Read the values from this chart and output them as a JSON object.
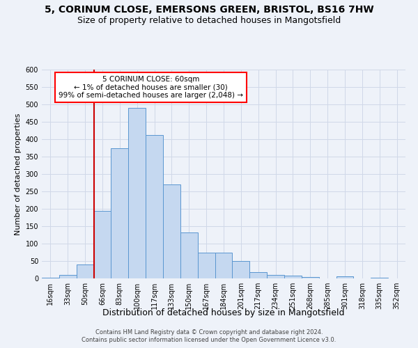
{
  "title_line1": "5, CORINUM CLOSE, EMERSONS GREEN, BRISTOL, BS16 7HW",
  "title_line2": "Size of property relative to detached houses in Mangotsfield",
  "xlabel": "Distribution of detached houses by size in Mangotsfield",
  "ylabel": "Number of detached properties",
  "categories": [
    "16sqm",
    "33sqm",
    "50sqm",
    "66sqm",
    "83sqm",
    "100sqm",
    "117sqm",
    "133sqm",
    "150sqm",
    "167sqm",
    "184sqm",
    "201sqm",
    "217sqm",
    "234sqm",
    "251sqm",
    "268sqm",
    "285sqm",
    "301sqm",
    "318sqm",
    "335sqm",
    "352sqm"
  ],
  "values": [
    3,
    10,
    40,
    195,
    375,
    490,
    412,
    270,
    132,
    74,
    74,
    50,
    18,
    10,
    8,
    5,
    0,
    6,
    0,
    2,
    1
  ],
  "bar_color": "#c5d8f0",
  "bar_edge_color": "#5a96d0",
  "annotation_text": "5 CORINUM CLOSE: 60sqm\n← 1% of detached houses are smaller (30)\n99% of semi-detached houses are larger (2,048) →",
  "annotation_box_color": "white",
  "annotation_box_edge_color": "red",
  "red_line_color": "#cc0000",
  "ylim": [
    0,
    600
  ],
  "yticks": [
    0,
    50,
    100,
    150,
    200,
    250,
    300,
    350,
    400,
    450,
    500,
    550,
    600
  ],
  "grid_color": "#d0d8e8",
  "footer_line1": "Contains HM Land Registry data © Crown copyright and database right 2024.",
  "footer_line2": "Contains public sector information licensed under the Open Government Licence v3.0.",
  "bg_color": "#eef2f9",
  "title_fontsize": 10,
  "subtitle_fontsize": 9,
  "xlabel_fontsize": 9,
  "ylabel_fontsize": 8,
  "tick_fontsize": 7,
  "footer_fontsize": 6,
  "annotation_fontsize": 7.5
}
